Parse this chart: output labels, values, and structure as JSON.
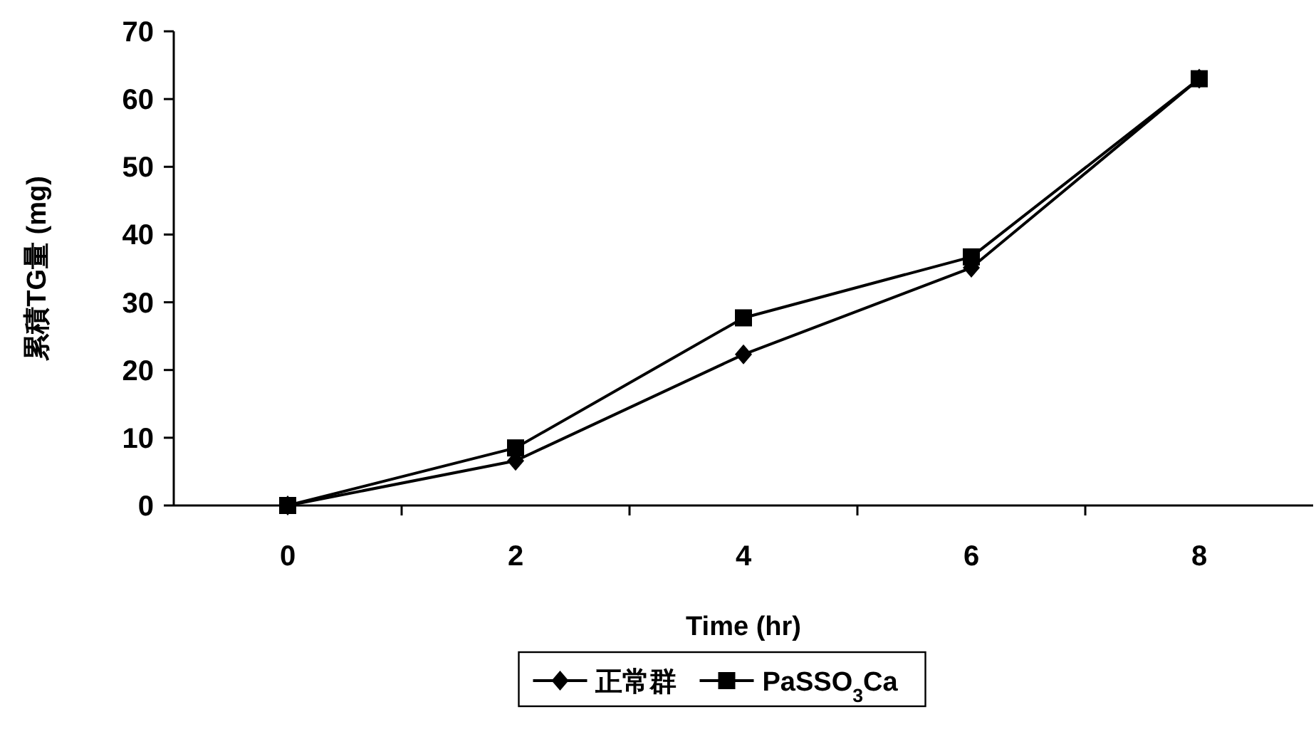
{
  "chart_data": {
    "type": "line",
    "xlabel": "Time (hr)",
    "ylabel": "累積TG量 (mg)",
    "categories": [
      "0",
      "2",
      "4",
      "6",
      "8"
    ],
    "series": [
      {
        "name": "正常群",
        "color": "#000000",
        "marker": "diamond",
        "values": [
          0,
          6.6,
          22.3,
          35.1,
          63
        ]
      },
      {
        "name": "PaSSO$_{3}$Ca",
        "color": "#000000",
        "marker": "square",
        "values": [
          0,
          8.5,
          27.7,
          36.7,
          63
        ]
      }
    ],
    "ylim": [
      0,
      70
    ],
    "yticks": [
      0,
      10,
      20,
      30,
      40,
      50,
      60,
      70
    ],
    "grid": false,
    "legend": "bottom",
    "line_style": "solid"
  }
}
